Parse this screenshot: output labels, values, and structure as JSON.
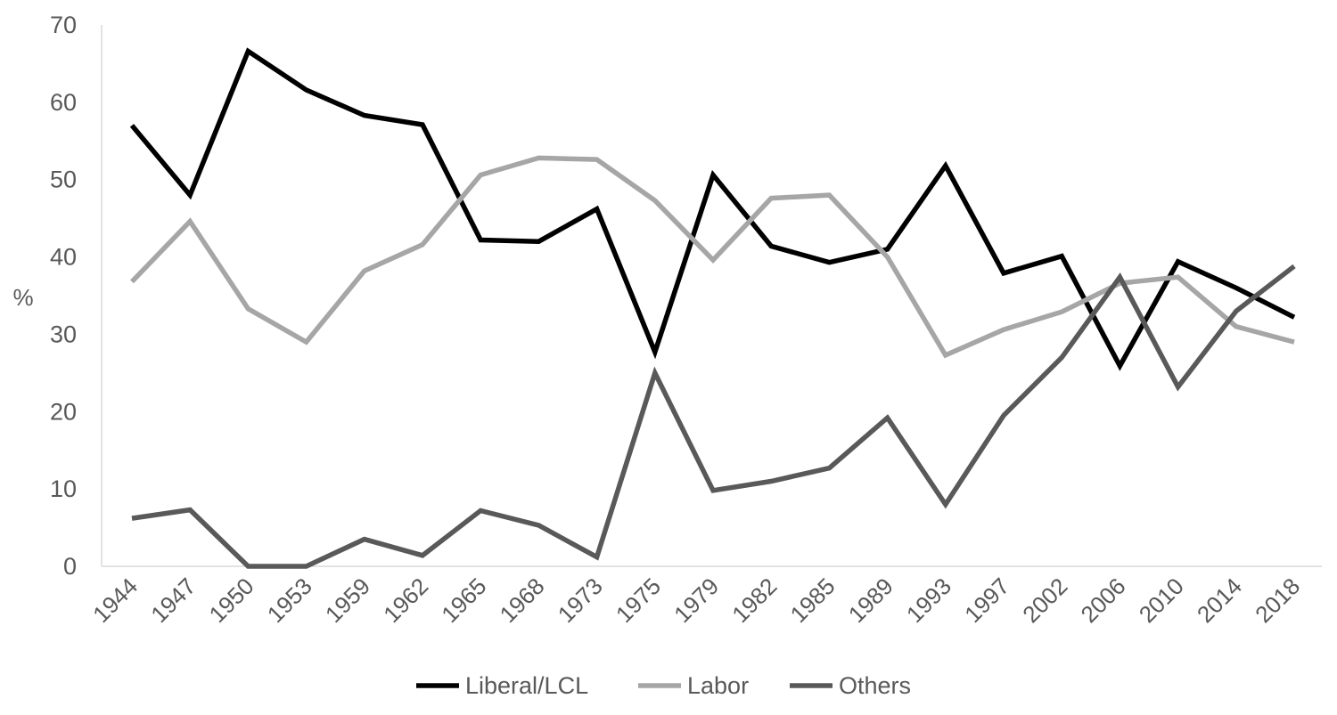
{
  "chart_data": {
    "type": "line",
    "title": "",
    "xlabel": "",
    "ylabel": "%",
    "ylim": [
      0,
      70
    ],
    "yticks": [
      0,
      10,
      20,
      30,
      40,
      50,
      60,
      70
    ],
    "grid": false,
    "legend_position": "bottom",
    "categories": [
      "1944",
      "1947",
      "1950",
      "1953",
      "1959",
      "1962",
      "1965",
      "1968",
      "1973",
      "1975",
      "1979",
      "1982",
      "1985",
      "1989",
      "1993",
      "1997",
      "2002",
      "2006",
      "2010",
      "2014",
      "2018"
    ],
    "series": [
      {
        "name": "Liberal/LCL",
        "color": "#000000",
        "values": [
          57,
          48,
          66.6,
          61.6,
          58.3,
          57.1,
          42.2,
          42,
          46.2,
          27.7,
          50.6,
          41.4,
          39.3,
          41,
          51.8,
          37.9,
          40.1,
          25.9,
          39.4,
          36,
          32.2
        ]
      },
      {
        "name": "Labor",
        "color": "#a6a6a6",
        "values": [
          36.8,
          44.6,
          33.3,
          29,
          38.2,
          41.6,
          50.6,
          52.8,
          52.6,
          47.3,
          39.6,
          47.6,
          48,
          40,
          27.3,
          30.6,
          32.9,
          36.6,
          37.4,
          31,
          29
        ]
      },
      {
        "name": "Others",
        "color": "#595959",
        "values": [
          6.2,
          7.3,
          0,
          0,
          3.5,
          1.4,
          7.2,
          5.3,
          1.2,
          25,
          9.8,
          11,
          12.7,
          19.2,
          8,
          19.5,
          27,
          37.4,
          23.2,
          33,
          38.8
        ]
      }
    ]
  }
}
